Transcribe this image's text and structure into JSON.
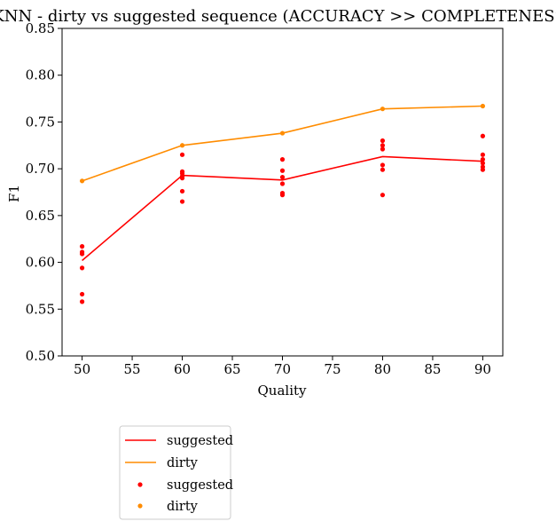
{
  "chart_data": {
    "type": "line",
    "title": "KNN - dirty vs suggested sequence (ACCURACY >> COMPLETENESS)",
    "xlabel": "Quality",
    "ylabel": "F1",
    "xlim": [
      48,
      92
    ],
    "ylim": [
      0.5,
      0.85
    ],
    "xticks": [
      "50",
      "55",
      "60",
      "65",
      "70",
      "75",
      "80",
      "85",
      "90"
    ],
    "yticks": [
      "0.50",
      "0.55",
      "0.60",
      "0.65",
      "0.70",
      "0.75",
      "0.80",
      "0.85"
    ],
    "xtick_values": [
      50,
      55,
      60,
      65,
      70,
      75,
      80,
      85,
      90
    ],
    "ytick_values": [
      0.5,
      0.55,
      0.6,
      0.65,
      0.7,
      0.75,
      0.8,
      0.85
    ],
    "grid": false,
    "legend_position": "below-left",
    "x": [
      50,
      60,
      70,
      80,
      90
    ],
    "series": [
      {
        "name": "suggested",
        "kind": "line",
        "color": "#ff0000",
        "values": [
          0.602,
          0.693,
          0.688,
          0.713,
          0.708
        ]
      },
      {
        "name": "dirty",
        "kind": "line",
        "color": "#ff8c00",
        "values": [
          0.687,
          0.725,
          0.738,
          0.764,
          0.767
        ]
      },
      {
        "name": "suggested",
        "kind": "scatter",
        "color": "#ff0000",
        "points": [
          [
            50,
            0.617
          ],
          [
            50,
            0.611
          ],
          [
            50,
            0.609
          ],
          [
            50,
            0.594
          ],
          [
            50,
            0.566
          ],
          [
            50,
            0.558
          ],
          [
            60,
            0.715
          ],
          [
            60,
            0.697
          ],
          [
            60,
            0.695
          ],
          [
            60,
            0.692
          ],
          [
            60,
            0.69
          ],
          [
            60,
            0.676
          ],
          [
            60,
            0.665
          ],
          [
            70,
            0.71
          ],
          [
            70,
            0.698
          ],
          [
            70,
            0.691
          ],
          [
            70,
            0.684
          ],
          [
            70,
            0.674
          ],
          [
            70,
            0.672
          ],
          [
            80,
            0.73
          ],
          [
            80,
            0.725
          ],
          [
            80,
            0.721
          ],
          [
            80,
            0.704
          ],
          [
            80,
            0.699
          ],
          [
            80,
            0.672
          ],
          [
            90,
            0.735
          ],
          [
            90,
            0.715
          ],
          [
            90,
            0.71
          ],
          [
            90,
            0.706
          ],
          [
            90,
            0.702
          ],
          [
            90,
            0.699
          ]
        ]
      },
      {
        "name": "dirty",
        "kind": "scatter",
        "color": "#ff8c00",
        "points": [
          [
            50,
            0.687
          ],
          [
            60,
            0.725
          ],
          [
            70,
            0.738
          ],
          [
            80,
            0.764
          ],
          [
            90,
            0.767
          ]
        ]
      }
    ]
  }
}
